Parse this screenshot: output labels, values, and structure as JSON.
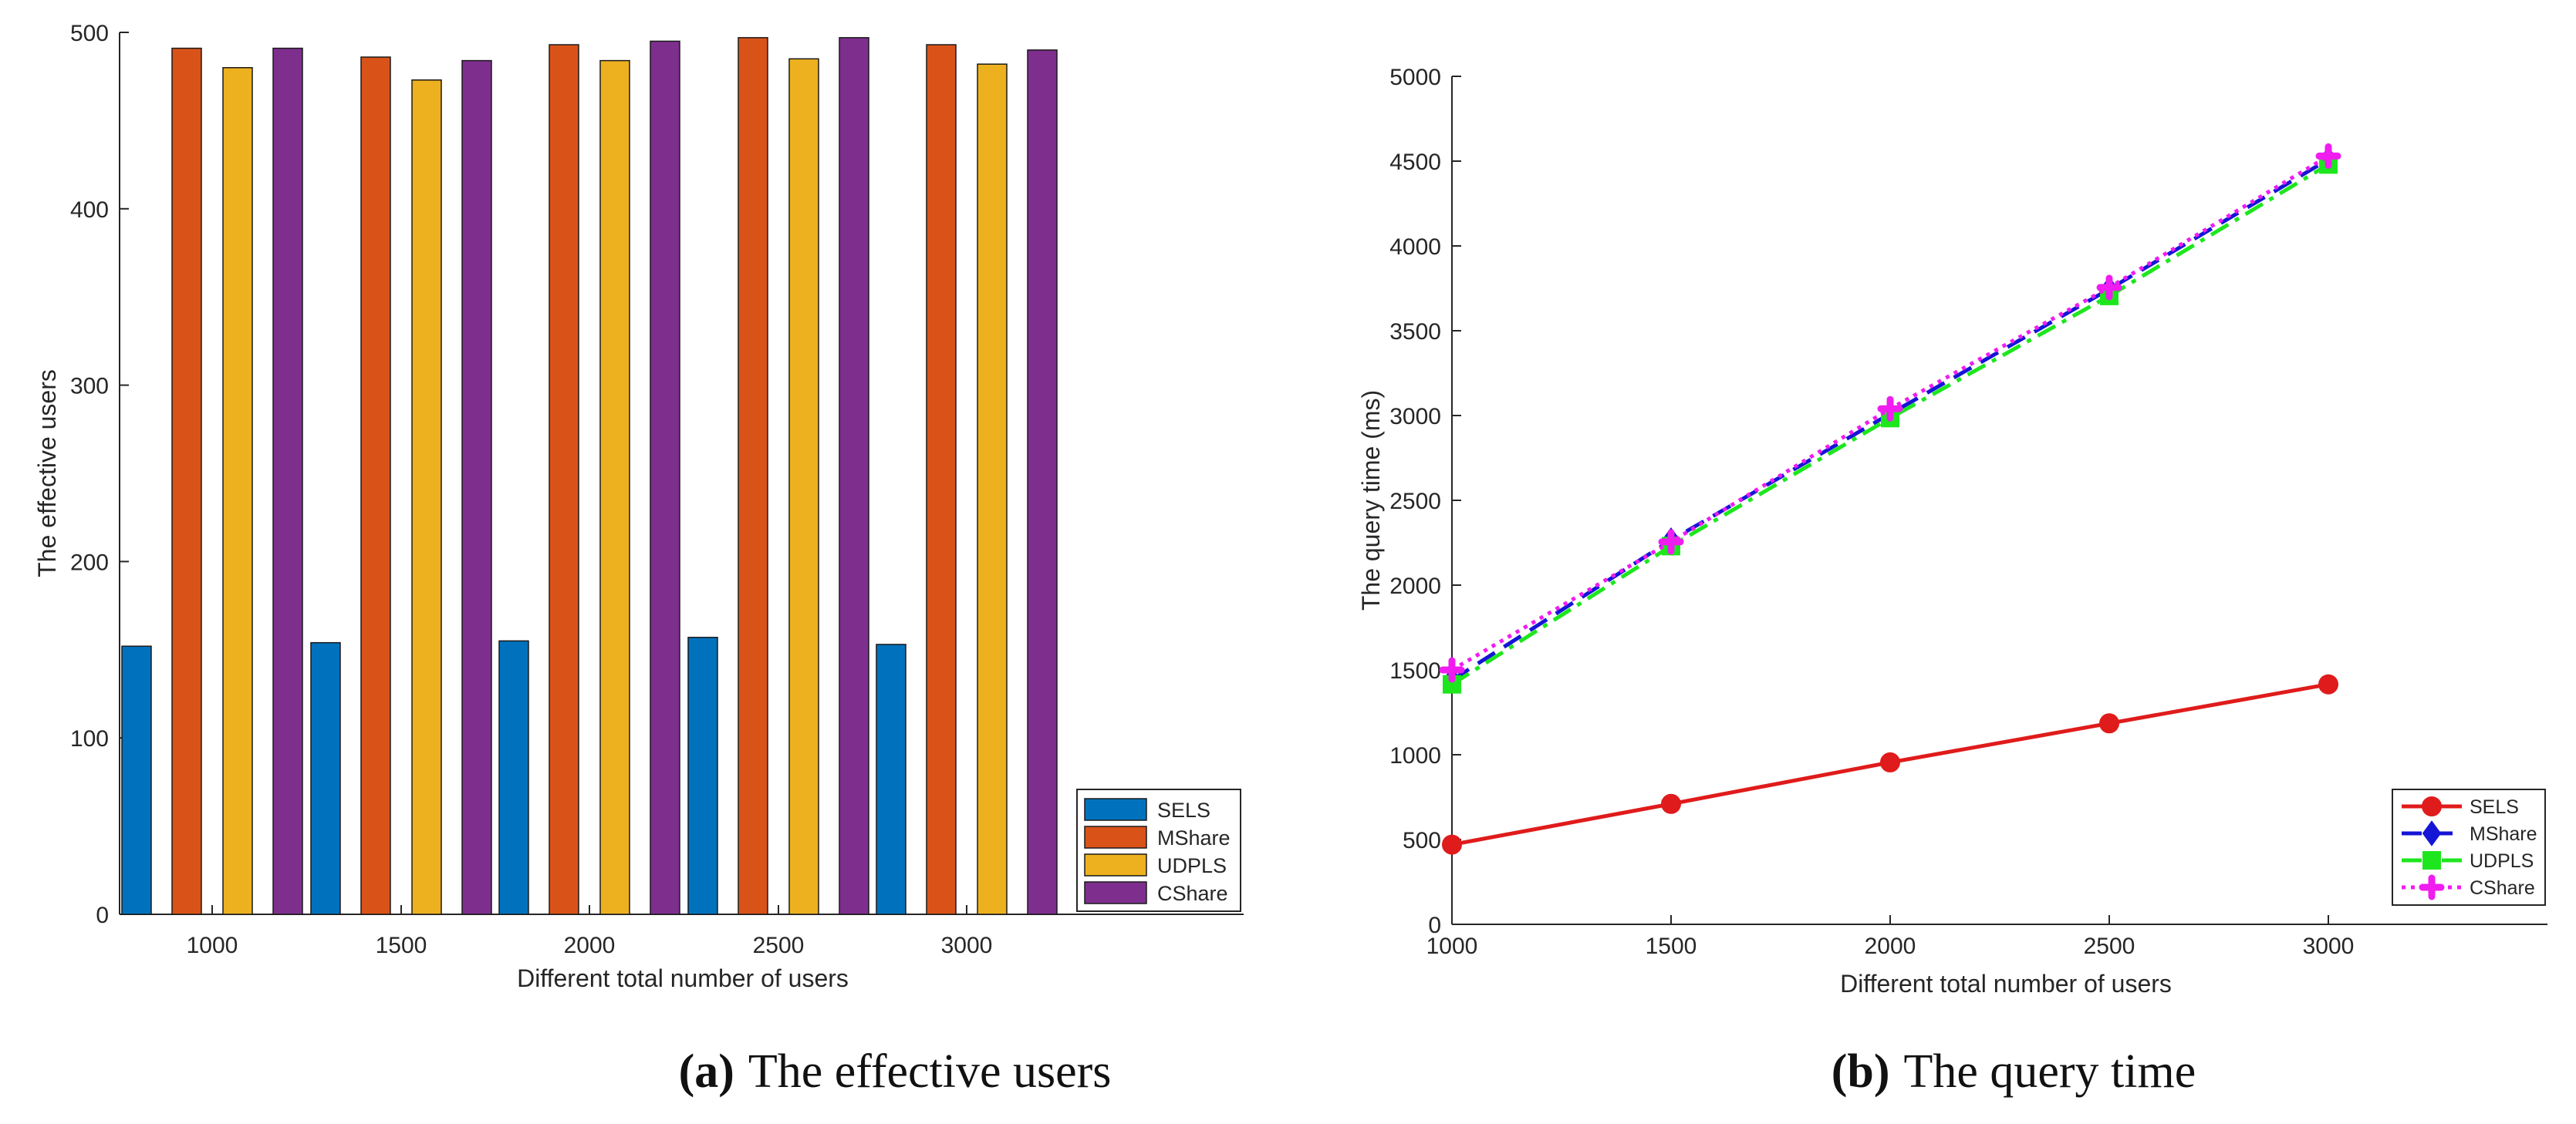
{
  "colors": {
    "sels_bar": "#0072BD",
    "mshare_bar": "#D95319",
    "udpls_bar": "#EDB120",
    "cshare_bar": "#7E2F8E",
    "sels_line": "#E01B1B",
    "mshare_line": "#1515D6",
    "udpls_line": "#1EE61E",
    "cshare_line": "#F01CF0",
    "axis": "#262626"
  },
  "captions": {
    "a_label": "(a)",
    "a_text": "The effective users",
    "b_label": "(b)",
    "b_text": "The query time"
  },
  "chart_data": [
    {
      "type": "bar",
      "title": "",
      "xlabel": "Different total number of users",
      "ylabel": "The effective users",
      "categories": [
        "1000",
        "1500",
        "2000",
        "2500",
        "3000"
      ],
      "ylim": [
        0,
        500
      ],
      "yticks": [
        0,
        100,
        200,
        300,
        400,
        500
      ],
      "legend_position": "bottom-right",
      "series": [
        {
          "name": "SELS",
          "values": [
            152,
            154,
            155,
            157,
            153
          ]
        },
        {
          "name": "MShare",
          "values": [
            491,
            486,
            493,
            497,
            493
          ]
        },
        {
          "name": "UDPLS",
          "values": [
            480,
            473,
            484,
            485,
            482
          ]
        },
        {
          "name": "CShare",
          "values": [
            491,
            484,
            495,
            497,
            490
          ]
        }
      ]
    },
    {
      "type": "line",
      "title": "",
      "xlabel": "Different total number of users",
      "ylabel": "The query time (ms)",
      "x": [
        1000,
        1500,
        2000,
        2500,
        3000
      ],
      "xlim": [
        1000,
        3500
      ],
      "xticks": [
        1000,
        1500,
        2000,
        2500,
        3000
      ],
      "ylim": [
        0,
        5000
      ],
      "yticks": [
        0,
        500,
        1000,
        1500,
        2000,
        2500,
        3000,
        3500,
        4000,
        4500,
        5000
      ],
      "legend_position": "bottom-right",
      "series": [
        {
          "name": "SELS",
          "values": [
            470,
            710,
            955,
            1185,
            1415
          ],
          "marker": "circle",
          "style": "solid"
        },
        {
          "name": "MShare",
          "values": [
            1440,
            2265,
            3010,
            3745,
            4510
          ],
          "marker": "diamond",
          "style": "dashed"
        },
        {
          "name": "UDPLS",
          "values": [
            1415,
            2230,
            2985,
            3705,
            4480
          ],
          "marker": "square",
          "style": "dashdot"
        },
        {
          "name": "CShare",
          "values": [
            1500,
            2255,
            3040,
            3755,
            4530
          ],
          "marker": "plus",
          "style": "dotted"
        }
      ]
    }
  ]
}
